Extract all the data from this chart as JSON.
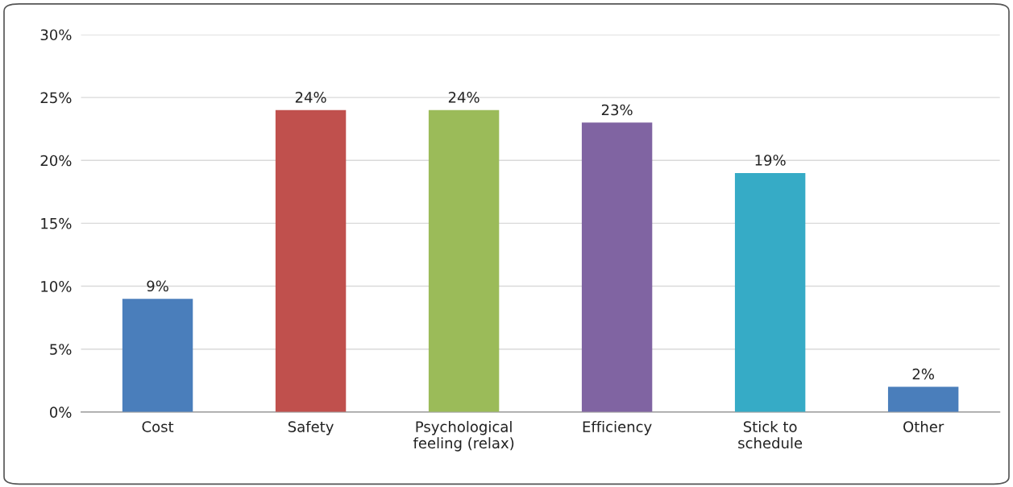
{
  "chart_data": {
    "type": "bar",
    "categories": [
      "Cost",
      "Safety",
      "Psychological\nfeeling (relax)",
      "Efficiency",
      "Stick to\nschedule",
      "Other"
    ],
    "values": [
      9,
      24,
      24,
      23,
      19,
      2
    ],
    "colors": [
      "#4a7ebb",
      "#c0504d",
      "#9bbb59",
      "#8064a2",
      "#36abc6",
      "#4a7ebb"
    ],
    "value_labels": [
      "9%",
      "24%",
      "24%",
      "23%",
      "19%",
      "2%"
    ],
    "ylim": [
      0,
      30
    ],
    "yticks": [
      {
        "value": 0,
        "label": "0%"
      },
      {
        "value": 5,
        "label": "5%"
      },
      {
        "value": 10,
        "label": "10%"
      },
      {
        "value": 15,
        "label": "15%"
      },
      {
        "value": 20,
        "label": "20%"
      },
      {
        "value": 25,
        "label": "25%"
      },
      {
        "value": 30,
        "label": "30%"
      }
    ],
    "grid": "y",
    "legend": false
  }
}
